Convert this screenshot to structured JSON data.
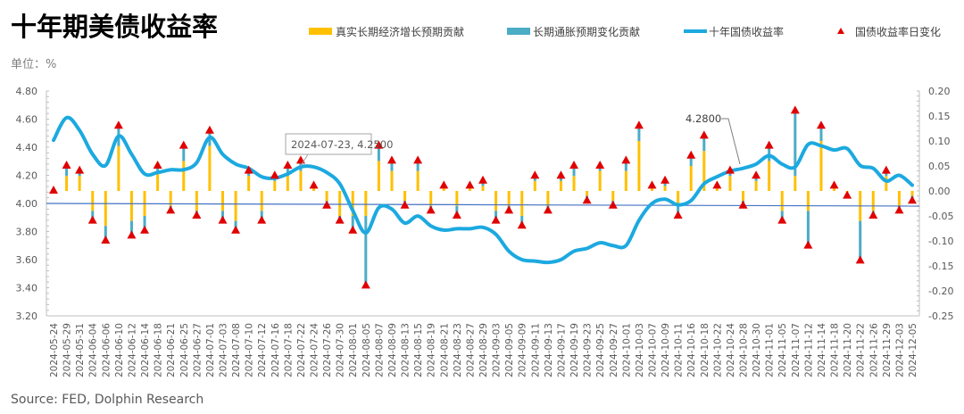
{
  "title": "十年期美债收益率",
  "unit_label": "单位：%",
  "source": "Source: FED, Dolphin Research",
  "colors": {
    "real": "#FFC000",
    "inflation": "#4BACC6",
    "yield": "#1CA9E0",
    "change": "#E00000",
    "baseline": "#4472C4"
  },
  "chart_data": {
    "type": "bar+line+scatter",
    "legend": [
      "真实长期经济增长预期贡献",
      "长期通胀预期变化贡献",
      "十年国债收益率",
      "国债收益率日变化"
    ],
    "legend_position": "top-right",
    "left_axis": {
      "ylim": [
        3.2,
        4.8
      ],
      "ticks": [
        "4.80",
        "4.60",
        "4.40",
        "4.20",
        "4.00",
        "3.80",
        "3.60",
        "3.40",
        "3.20"
      ]
    },
    "right_axis": {
      "ylim": [
        -0.25,
        0.2
      ],
      "ticks": [
        "0.20",
        "0.15",
        "0.10",
        "0.05",
        "0.00",
        "-0.05",
        "-0.10",
        "-0.15",
        "-0.20",
        "-0.25"
      ]
    },
    "grid": false,
    "x": [
      "2024-05-24",
      "2024-05-29",
      "2024-05-31",
      "2024-06-04",
      "2024-06-06",
      "2024-06-10",
      "2024-06-12",
      "2024-06-14",
      "2024-06-18",
      "2024-06-21",
      "2024-06-25",
      "2024-06-27",
      "2024-07-01",
      "2024-07-03",
      "2024-07-08",
      "2024-07-10",
      "2024-07-12",
      "2024-07-16",
      "2024-07-18",
      "2024-07-22",
      "2024-07-24",
      "2024-07-26",
      "2024-07-30",
      "2024-08-01",
      "2024-08-05",
      "2024-08-07",
      "2024-08-09",
      "2024-08-13",
      "2024-08-15",
      "2024-08-19",
      "2024-08-21",
      "2024-08-23",
      "2024-08-27",
      "2024-08-29",
      "2024-09-03",
      "2024-09-05",
      "2024-09-09",
      "2024-09-11",
      "2024-09-13",
      "2024-09-17",
      "2024-09-19",
      "2024-09-23",
      "2024-09-25",
      "2024-09-27",
      "2024-10-01",
      "2024-10-03",
      "2024-10-07",
      "2024-10-09",
      "2024-10-11",
      "2024-10-16",
      "2024-10-18",
      "2024-10-22",
      "2024-10-24",
      "2024-10-28",
      "2024-10-30",
      "2024-11-01",
      "2024-11-05",
      "2024-11-07",
      "2024-11-12",
      "2024-11-14",
      "2024-11-18",
      "2024-11-20",
      "2024-11-22",
      "2024-11-26",
      "2024-11-29",
      "2024-12-03",
      "2024-12-05"
    ],
    "series": [
      {
        "name": "十年国债收益率",
        "axis": "left",
        "type": "line",
        "values": [
          4.45,
          4.61,
          4.52,
          4.35,
          4.27,
          4.48,
          4.35,
          4.21,
          4.22,
          4.24,
          4.24,
          4.29,
          4.47,
          4.35,
          4.28,
          4.25,
          4.19,
          4.18,
          4.21,
          4.26,
          4.26,
          4.22,
          4.14,
          3.95,
          3.79,
          3.97,
          3.96,
          3.86,
          3.91,
          3.84,
          3.81,
          3.82,
          3.82,
          3.83,
          3.78,
          3.66,
          3.6,
          3.59,
          3.58,
          3.6,
          3.66,
          3.68,
          3.72,
          3.7,
          3.7,
          3.88,
          4.0,
          4.03,
          3.99,
          4.02,
          4.14,
          4.19,
          4.23,
          4.25,
          4.28,
          4.34,
          4.28,
          4.26,
          4.42,
          4.41,
          4.38,
          4.39,
          4.27,
          4.25,
          4.16,
          4.2,
          4.13
        ]
      },
      {
        "name": "国债收益率日变化",
        "axis": "right",
        "type": "scatter",
        "values": [
          0.0,
          0.05,
          0.04,
          -0.06,
          -0.1,
          0.13,
          -0.09,
          -0.08,
          0.05,
          -0.04,
          0.09,
          -0.05,
          0.12,
          -0.06,
          -0.08,
          0.04,
          -0.06,
          0.03,
          0.05,
          0.06,
          0.01,
          -0.03,
          -0.06,
          -0.08,
          -0.19,
          0.09,
          0.06,
          -0.03,
          0.06,
          -0.04,
          0.01,
          -0.05,
          0.01,
          0.02,
          -0.06,
          -0.04,
          -0.07,
          0.03,
          -0.04,
          0.03,
          0.05,
          -0.02,
          0.05,
          -0.03,
          0.06,
          0.13,
          0.01,
          0.02,
          -0.05,
          0.07,
          0.11,
          0.01,
          0.04,
          -0.03,
          0.03,
          0.09,
          -0.06,
          0.16,
          -0.11,
          0.13,
          0.01,
          -0.01,
          -0.14,
          -0.05,
          0.04,
          -0.04,
          -0.02
        ]
      },
      {
        "name": "真实长期经济增长预期贡献",
        "axis": "right",
        "type": "bar",
        "values": [
          0.0,
          0.03,
          0.03,
          -0.04,
          -0.07,
          0.09,
          -0.06,
          -0.05,
          0.04,
          -0.03,
          0.06,
          -0.04,
          0.09,
          -0.04,
          -0.06,
          0.03,
          -0.04,
          0.02,
          0.03,
          0.04,
          0.01,
          -0.02,
          -0.05,
          -0.05,
          -0.05,
          0.06,
          0.04,
          -0.02,
          0.04,
          -0.03,
          0.01,
          -0.03,
          0.01,
          0.01,
          -0.04,
          -0.03,
          -0.05,
          0.02,
          -0.03,
          0.02,
          0.03,
          -0.01,
          0.04,
          -0.02,
          0.04,
          0.1,
          0.01,
          0.01,
          -0.03,
          0.05,
          0.08,
          0.01,
          0.03,
          -0.02,
          0.02,
          0.06,
          -0.04,
          0.03,
          -0.04,
          0.1,
          0.01,
          -0.01,
          -0.06,
          -0.04,
          0.03,
          -0.03,
          -0.01
        ]
      },
      {
        "name": "长期通胀预期变化贡献",
        "axis": "right",
        "type": "bar",
        "values": [
          0.0,
          0.02,
          0.01,
          -0.02,
          -0.03,
          0.04,
          -0.03,
          -0.03,
          0.01,
          -0.01,
          0.03,
          -0.01,
          0.03,
          -0.02,
          -0.02,
          0.01,
          -0.02,
          0.01,
          0.02,
          0.02,
          0.0,
          -0.01,
          -0.01,
          -0.03,
          -0.14,
          0.03,
          0.02,
          -0.01,
          0.02,
          -0.01,
          0.0,
          -0.02,
          0.0,
          0.01,
          -0.02,
          -0.01,
          -0.02,
          0.01,
          -0.01,
          0.01,
          0.02,
          -0.01,
          0.01,
          -0.01,
          0.02,
          0.03,
          0.0,
          0.01,
          -0.02,
          0.02,
          0.03,
          0.0,
          0.01,
          -0.01,
          0.01,
          0.03,
          -0.02,
          0.13,
          -0.07,
          0.03,
          0.0,
          0.0,
          -0.08,
          -0.01,
          0.01,
          -0.01,
          -0.01
        ]
      }
    ],
    "annotations": [
      {
        "text": "2024-07-23, 4.2500",
        "x": "2024-07-23",
        "y": 4.25
      },
      {
        "text": "4.2800",
        "x": "2024-10-29",
        "y": 4.28
      }
    ]
  }
}
